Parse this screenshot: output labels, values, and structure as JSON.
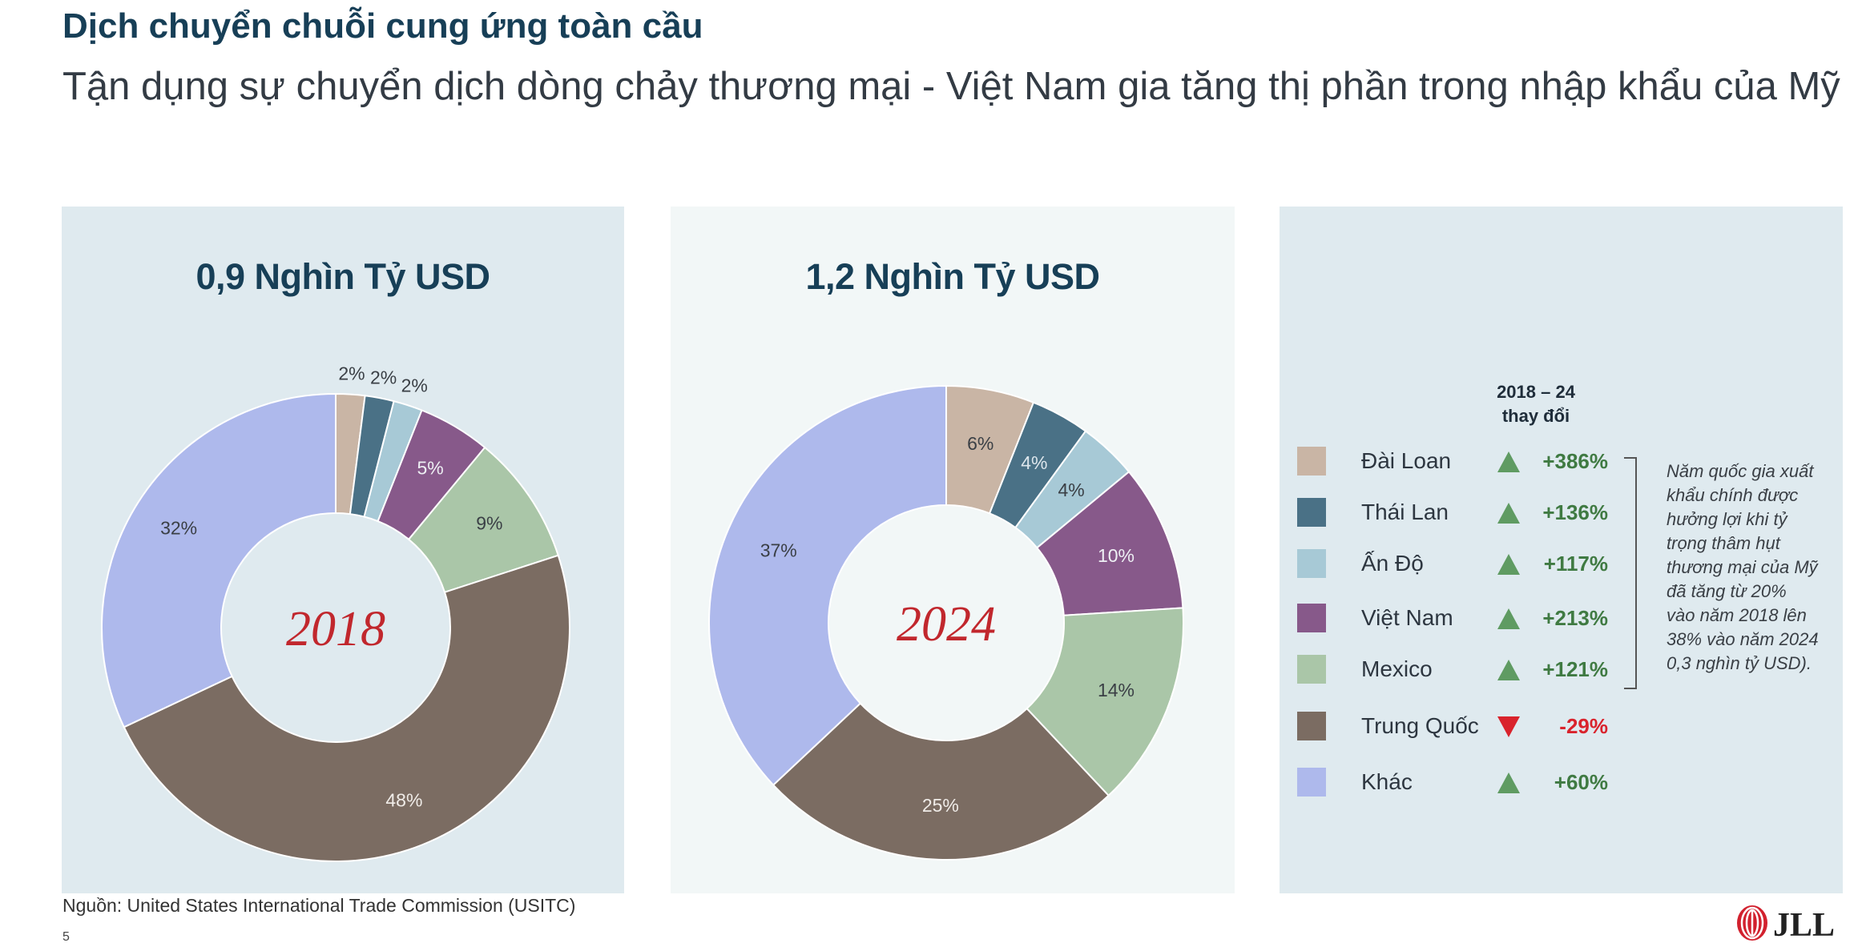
{
  "header": {
    "title": "Dịch chuyển chuỗi cung ứng toàn cầu",
    "subtitle": "Tận dụng sự chuyển dịch dòng chảy thương mại - Việt Nam gia tăng thị phần trong nhập khẩu của Mỹ"
  },
  "chart_data": [
    {
      "type": "pie",
      "variant": "donut",
      "title": "0,9 Nghìn Tỷ USD",
      "center_label": "2018",
      "categories": [
        "Đài Loan",
        "Thái Lan",
        "Ấn Độ",
        "Việt Nam",
        "Mexico",
        "Trung Quốc",
        "Khác"
      ],
      "values": [
        2,
        2,
        2,
        5,
        9,
        48,
        32
      ],
      "labels": [
        "2%",
        "2%",
        "2%",
        "5%",
        "9%",
        "48%",
        "32%"
      ],
      "colors": [
        "#c9b5a5",
        "#4a7186",
        "#a7c9d6",
        "#87598a",
        "#aac6a8",
        "#7b6c62",
        "#aeb9ec"
      ]
    },
    {
      "type": "pie",
      "variant": "donut",
      "title": "1,2 Nghìn Tỷ USD",
      "center_label": "2024",
      "categories": [
        "Đài Loan",
        "Thái Lan",
        "Ấn Độ",
        "Việt Nam",
        "Mexico",
        "Trung Quốc",
        "Khác"
      ],
      "values": [
        6,
        4,
        4,
        10,
        14,
        25,
        37
      ],
      "labels": [
        "6%",
        "4%",
        "4%",
        "10%",
        "14%",
        "25%",
        "37%"
      ],
      "colors": [
        "#c9b5a5",
        "#4a7186",
        "#a7c9d6",
        "#87598a",
        "#aac6a8",
        "#7b6c62",
        "#aeb9ec"
      ]
    }
  ],
  "legend": {
    "header_line1": "2018 – 24",
    "header_line2": "thay đổi",
    "items": [
      {
        "label": "Đài Loan",
        "change": "+386%",
        "direction": "up",
        "color": "#c9b5a5"
      },
      {
        "label": "Thái Lan",
        "change": "+136%",
        "direction": "up",
        "color": "#4a7186"
      },
      {
        "label": "Ấn Độ",
        "change": "+117%",
        "direction": "up",
        "color": "#a7c9d6"
      },
      {
        "label": "Việt Nam",
        "change": "+213%",
        "direction": "up",
        "color": "#87598a"
      },
      {
        "label": "Mexico",
        "change": "+121%",
        "direction": "up",
        "color": "#aac6a8"
      },
      {
        "label": "Trung Quốc",
        "change": "-29%",
        "direction": "down",
        "color": "#7b6c62"
      },
      {
        "label": "Khác",
        "change": "+60%",
        "direction": "up",
        "color": "#aeb9ec"
      }
    ],
    "note": "Năm quốc gia xuất khẩu chính được hưởng lợi khi tỷ trọng thâm hụt thương mại của Mỹ đã tăng từ 20% vào năm 2018 lên 38% vào năm 2024 0,3 nghìn tỷ USD)."
  },
  "colors": {
    "up": "#5f9b62",
    "down": "#d9232c",
    "up_text": "#3f7a42",
    "down_text": "#d9232c",
    "center_year": "#c1272d"
  },
  "footer": {
    "source": "Nguồn: United States International Trade Commission (USITC)",
    "page_number": "5",
    "logo_text": "JLL"
  }
}
